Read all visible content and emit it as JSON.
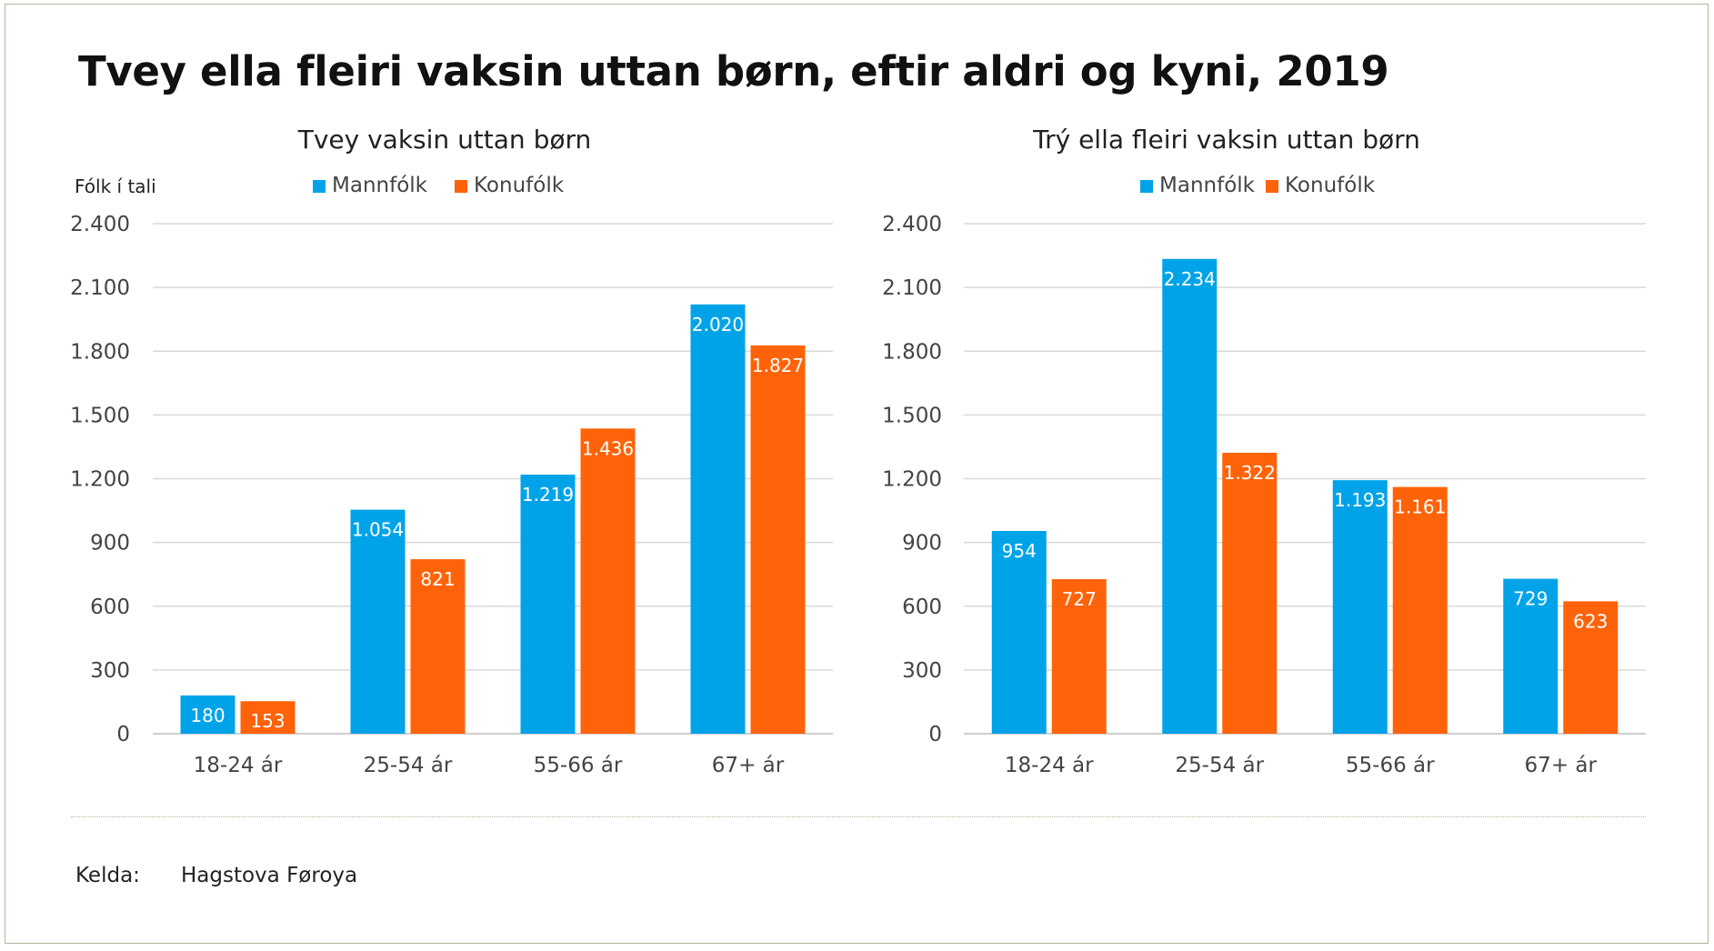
{
  "title": "Tvey ella fleiri vaksin uttan børn, eftir aldri og kyni, 2019",
  "source_label": "Kelda:",
  "source_value": "Hagstova Føroya",
  "colors": {
    "Mannfólk": "#00a3e8",
    "Konufólk": "#ff6309",
    "grid": "#d9d9d9"
  },
  "chart_data": [
    {
      "type": "bar",
      "title": "Tvey vaksin uttan børn",
      "ylabel": "Fólk í tali",
      "xlabel": "",
      "categories": [
        "18-24 ár",
        "25-54 ár",
        "55-66 ár",
        "67+ ár"
      ],
      "series": [
        {
          "name": "Mannfólk",
          "values": [
            180,
            1054,
            1219,
            2020
          ],
          "labels": [
            "180",
            "1.054",
            "1.219",
            "2.020"
          ]
        },
        {
          "name": "Konufólk",
          "values": [
            153,
            821,
            1436,
            1827
          ],
          "labels": [
            "153",
            "821",
            "1.436",
            "1.827"
          ]
        }
      ],
      "ylim": [
        0,
        2400
      ],
      "yticks": [
        0,
        300,
        600,
        900,
        1200,
        1500,
        1800,
        2100,
        2400
      ],
      "ytick_labels": [
        "0",
        "300",
        "600",
        "900",
        "1.200",
        "1.500",
        "1.800",
        "2.100",
        "2.400"
      ],
      "grid": true,
      "legend": "top"
    },
    {
      "type": "bar",
      "title": "Trý ella fleiri vaksin uttan børn",
      "ylabel": "",
      "xlabel": "",
      "categories": [
        "18-24 ár",
        "25-54 ár",
        "55-66 ár",
        "67+ ár"
      ],
      "series": [
        {
          "name": "Mannfólk",
          "values": [
            954,
            2234,
            1193,
            729
          ],
          "labels": [
            "954",
            "2.234",
            "1.193",
            "729"
          ]
        },
        {
          "name": "Konufólk",
          "values": [
            727,
            1322,
            1161,
            623
          ],
          "labels": [
            "727",
            "1.322",
            "1.161",
            "623"
          ]
        }
      ],
      "ylim": [
        0,
        2400
      ],
      "yticks": [
        0,
        300,
        600,
        900,
        1200,
        1500,
        1800,
        2100,
        2400
      ],
      "ytick_labels": [
        "0",
        "300",
        "600",
        "900",
        "1.200",
        "1.500",
        "1.800",
        "2.100",
        "2.400"
      ],
      "grid": true,
      "legend": "top"
    }
  ]
}
